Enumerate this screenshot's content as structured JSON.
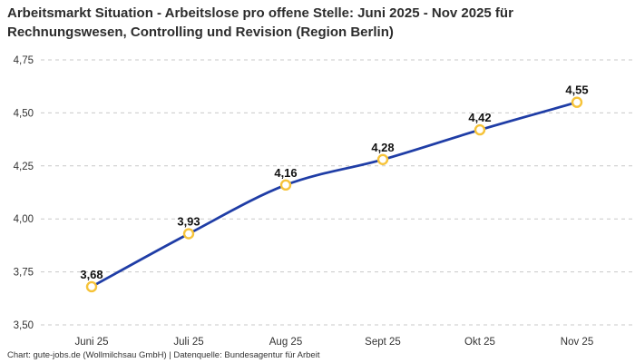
{
  "header": {
    "title": "Arbeitsmarkt Situation - Arbeitslose pro offene Stelle: Juni 2025 - Nov 2025 für Rechnungswesen, Controlling und Revision (Region Berlin)"
  },
  "chart_data": {
    "type": "line",
    "title": "Arbeitsmarkt Situation - Arbeitslose pro offene Stelle: Juni 2025 - Nov 2025 für Rechnungswesen, Controlling und Revision (Region Berlin)",
    "categories": [
      "Juni 25",
      "Juli 25",
      "Aug 25",
      "Sept 25",
      "Okt 25",
      "Nov 25"
    ],
    "values": [
      3.68,
      3.93,
      4.16,
      4.28,
      4.42,
      4.55
    ],
    "value_labels": [
      "3,68",
      "3,93",
      "4,16",
      "4,28",
      "4,42",
      "4,55"
    ],
    "xlabel": "",
    "ylabel": "",
    "ylim": [
      3.5,
      4.75
    ],
    "ytick_values": [
      3.5,
      3.75,
      4.0,
      4.25,
      4.5,
      4.75
    ],
    "ytick_labels": [
      "3,50",
      "3,75",
      "4,00",
      "4,25",
      "4,50",
      "4,75"
    ],
    "grid": "horizontal-dashed",
    "legend": "none",
    "colors": {
      "line": "#1f3da6",
      "marker_ring": "#f6c339",
      "marker_fill": "#ffffff",
      "gridline": "#c9c9c9",
      "axis_text": "#333333",
      "value_label": "#111111"
    }
  },
  "footer": {
    "credit": "Chart: gute-jobs.de (Wollmilchsau GmbH) | Datenquelle: Bundesagentur für Arbeit"
  }
}
